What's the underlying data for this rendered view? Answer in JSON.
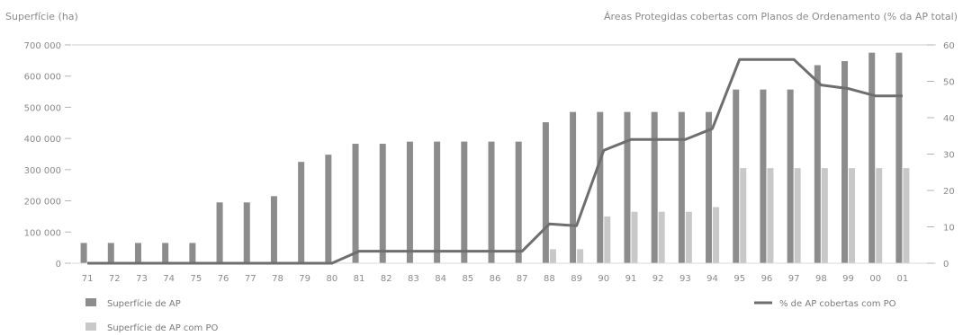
{
  "chart_data": {
    "type": "bar",
    "left_axis_title": "Superfície (ha)",
    "right_axis_title": "Áreas Protegidas cobertas com Planos de Ordenamento (% da AP total)",
    "categories": [
      "71",
      "72",
      "73",
      "74",
      "75",
      "76",
      "77",
      "78",
      "79",
      "80",
      "81",
      "82",
      "83",
      "84",
      "85",
      "86",
      "87",
      "88",
      "89",
      "90",
      "91",
      "92",
      "93",
      "94",
      "95",
      "96",
      "97",
      "98",
      "99",
      "00",
      "01"
    ],
    "left_ticks": [
      "0",
      "100 000",
      "200 000",
      "300 000",
      "400 000",
      "500 000",
      "600 000",
      "700 000"
    ],
    "left_ylim": [
      0,
      700000
    ],
    "right_ticks": [
      "0",
      "10",
      "20",
      "30",
      "40",
      "50",
      "60"
    ],
    "right_ylim": [
      0,
      60
    ],
    "series": [
      {
        "name": "Superfície de AP",
        "kind": "bar",
        "axis": "left",
        "color": "#8c8c8c",
        "values": [
          65000,
          65000,
          65000,
          65000,
          65000,
          195000,
          195000,
          215000,
          325000,
          348000,
          383000,
          383000,
          390000,
          390000,
          390000,
          390000,
          390000,
          452000,
          485000,
          485000,
          485000,
          485000,
          485000,
          485000,
          557000,
          557000,
          557000,
          635000,
          648000,
          675000,
          675000
        ]
      },
      {
        "name": "Superfície de AP com PO",
        "kind": "bar",
        "axis": "left",
        "color": "#c8c8c8",
        "values": [
          0,
          0,
          0,
          0,
          0,
          0,
          0,
          0,
          0,
          0,
          0,
          0,
          0,
          0,
          0,
          0,
          0,
          45000,
          45000,
          150000,
          165000,
          165000,
          165000,
          180000,
          305000,
          305000,
          305000,
          305000,
          305000,
          305000,
          305000
        ]
      },
      {
        "name": "% de AP cobertas com PO",
        "kind": "line",
        "axis": "right",
        "color": "#6e6e6e",
        "values": [
          0,
          0,
          0,
          0,
          0,
          0,
          0,
          0,
          0,
          0,
          3.3,
          3.3,
          3.3,
          3.3,
          3.3,
          3.3,
          3.3,
          10.8,
          10.3,
          31,
          34,
          34,
          34,
          37,
          56,
          56,
          56,
          49,
          48,
          46,
          46
        ]
      }
    ],
    "grid": false,
    "legend_position": "bottom"
  }
}
